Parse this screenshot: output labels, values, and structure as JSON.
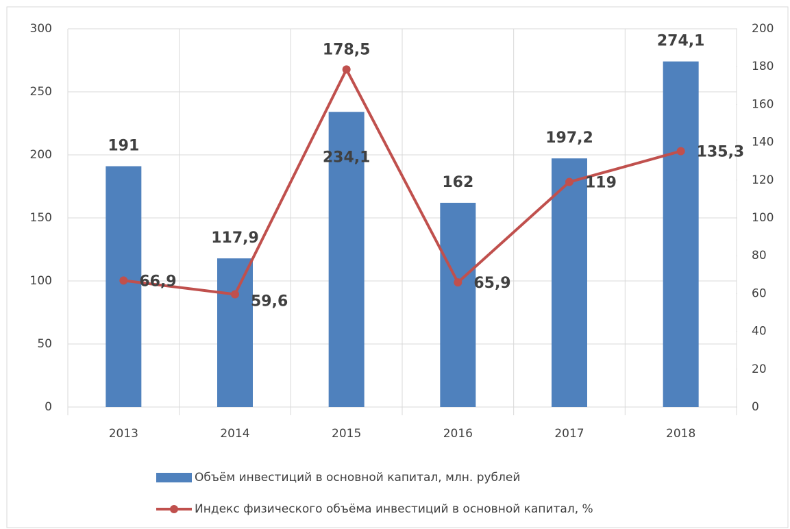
{
  "chart_data": {
    "type": "combo",
    "categories": [
      "2013",
      "2014",
      "2015",
      "2016",
      "2017",
      "2018"
    ],
    "series": [
      {
        "name": "Объём инвестиций в основной капитал, млн. рублей",
        "type": "bar",
        "color": "#4f81bd",
        "values": [
          191,
          117.9,
          234.1,
          162,
          197.2,
          274.1
        ],
        "value_labels": [
          "191",
          "117,9",
          "234,1",
          "162",
          "197,2",
          "274,1"
        ]
      },
      {
        "name": "Индекс физического объёма инвестиций в основной капитал, %",
        "type": "line",
        "axis": "y2",
        "color": "#c0504d",
        "values": [
          66.9,
          59.6,
          178.5,
          65.9,
          119,
          135.3
        ],
        "value_labels": [
          "66,9",
          "59,6",
          "178,5",
          "65,9",
          "119",
          "135,3"
        ]
      }
    ],
    "ylim": [
      0,
      300
    ],
    "yticks": [
      0,
      50,
      100,
      150,
      200,
      250,
      300
    ],
    "y2lim": [
      0,
      200
    ],
    "y2ticks": [
      0,
      20,
      40,
      60,
      80,
      100,
      120,
      140,
      160,
      180,
      200
    ],
    "grid": true,
    "legend": "bottom"
  }
}
